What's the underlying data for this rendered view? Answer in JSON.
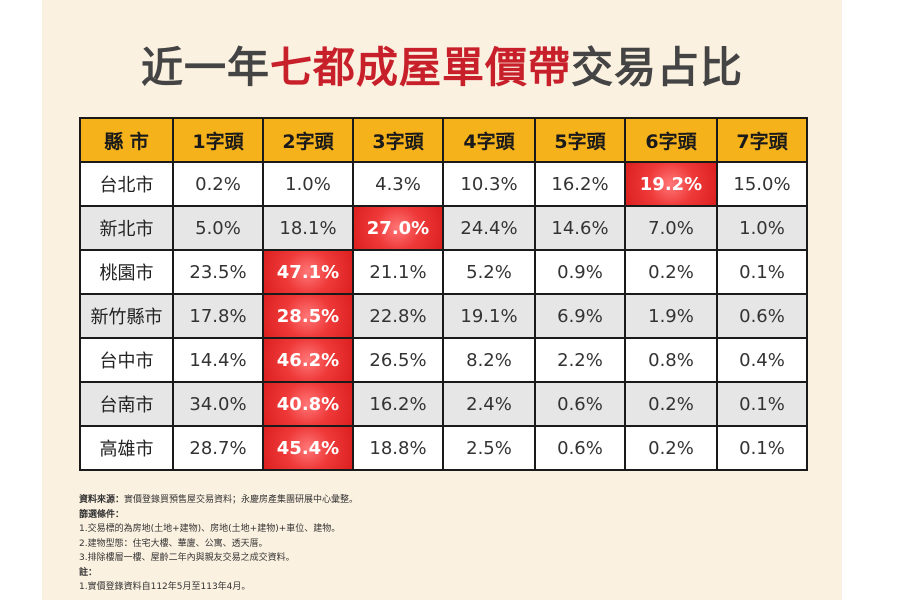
{
  "title": {
    "part1": "近一年",
    "highlight": "七都成屋單價帶",
    "part2": "交易占比"
  },
  "table": {
    "headers": [
      "縣 市",
      "1字頭",
      "2字頭",
      "3字頭",
      "4字頭",
      "5字頭",
      "6字頭",
      "7字頭"
    ],
    "rows": [
      {
        "city": "台北市",
        "cells": [
          "0.2%",
          "1.0%",
          "4.3%",
          "10.3%",
          "16.2%",
          "19.2%",
          "15.0%"
        ]
      },
      {
        "city": "新北市",
        "cells": [
          "5.0%",
          "18.1%",
          "27.0%",
          "24.4%",
          "14.6%",
          "7.0%",
          "1.0%"
        ]
      },
      {
        "city": "桃園市",
        "cells": [
          "23.5%",
          "47.1%",
          "21.1%",
          "5.2%",
          "0.9%",
          "0.2%",
          "0.1%"
        ]
      },
      {
        "city": "新竹縣市",
        "cells": [
          "17.8%",
          "28.5%",
          "22.8%",
          "19.1%",
          "6.9%",
          "1.9%",
          "0.6%"
        ]
      },
      {
        "city": "台中市",
        "cells": [
          "14.4%",
          "46.2%",
          "26.5%",
          "8.2%",
          "2.2%",
          "0.8%",
          "0.4%"
        ]
      },
      {
        "city": "台南市",
        "cells": [
          "34.0%",
          "40.8%",
          "16.2%",
          "2.4%",
          "0.6%",
          "0.2%",
          "0.1%"
        ]
      },
      {
        "city": "高雄市",
        "cells": [
          "28.7%",
          "45.4%",
          "18.8%",
          "2.5%",
          "0.6%",
          "0.2%",
          "0.1%"
        ]
      }
    ],
    "highlight_cells": [
      [
        0,
        5
      ],
      [
        1,
        2
      ],
      [
        2,
        1
      ],
      [
        3,
        1
      ],
      [
        4,
        1
      ],
      [
        5,
        1
      ],
      [
        6,
        1
      ]
    ]
  },
  "notes": {
    "source_label": "資料來源：",
    "source_text": "實價登錄買預售屋交易資料；永慶房產集團研展中心彙整。",
    "filter_label": "篩選條件：",
    "filters": [
      "1.交易標的為房地(土地+建物)、房地(土地+建物)+車位、建物。",
      "2.建物型態：住宅大樓、華廈、公寓、透天厝。",
      "3.排除樓層一樓、屋齡二年內與親友交易之成交資料。"
    ],
    "note_label": "註：",
    "note_lines": [
      "1.實價登錄資料自112年5月至113年4月。"
    ]
  },
  "colors": {
    "header_bg": "#f6b21b",
    "highlight": "#e52a2a",
    "title_accent": "#c8202b",
    "card_bg": "#fbf1e1"
  }
}
